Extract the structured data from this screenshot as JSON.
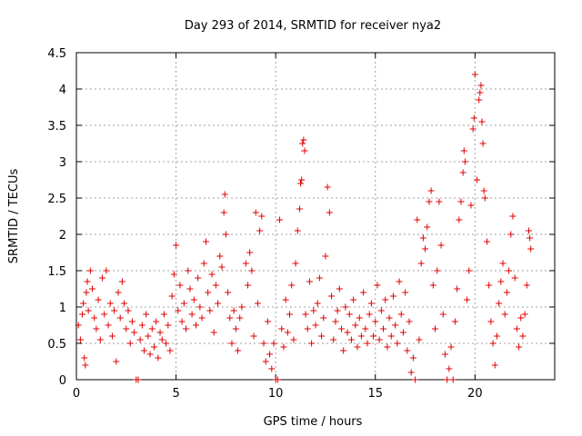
{
  "chart_data": {
    "type": "scatter",
    "title": "Day 293 of 2014, SRMTID for receiver nya2",
    "xlabel": "GPS time / hours",
    "ylabel": "SRMTID / TECUs",
    "xlim": [
      0,
      24
    ],
    "ylim": [
      0,
      4.5
    ],
    "xticks": [
      0,
      5,
      10,
      15,
      20
    ],
    "yticks": [
      0,
      0.5,
      1,
      1.5,
      2,
      2.5,
      3,
      3.5,
      4,
      4.5
    ],
    "xtick_labels": [
      "0",
      "5",
      "10",
      "15",
      "20"
    ],
    "ytick_labels": [
      "0",
      "0.5",
      "1",
      "1.5",
      "2",
      "2.5",
      "3",
      "3.5",
      "4",
      "4.5"
    ],
    "grid": true,
    "marker": "+",
    "color": "#e00000",
    "series": [
      {
        "name": "SRMTID",
        "points": [
          [
            0.1,
            0.75
          ],
          [
            0.2,
            0.55
          ],
          [
            0.3,
            0.9
          ],
          [
            0.35,
            1.05
          ],
          [
            0.4,
            0.3
          ],
          [
            0.45,
            0.2
          ],
          [
            0.5,
            1.2
          ],
          [
            0.55,
            1.35
          ],
          [
            0.6,
            0.95
          ],
          [
            0.7,
            1.5
          ],
          [
            0.8,
            1.25
          ],
          [
            0.9,
            0.85
          ],
          [
            1.0,
            0.7
          ],
          [
            1.1,
            1.1
          ],
          [
            1.2,
            0.55
          ],
          [
            1.3,
            1.4
          ],
          [
            1.4,
            0.9
          ],
          [
            1.5,
            1.5
          ],
          [
            1.6,
            0.75
          ],
          [
            1.7,
            1.05
          ],
          [
            1.8,
            0.6
          ],
          [
            1.9,
            0.95
          ],
          [
            2.0,
            0.25
          ],
          [
            2.1,
            1.2
          ],
          [
            2.2,
            0.85
          ],
          [
            2.3,
            1.35
          ],
          [
            2.4,
            1.05
          ],
          [
            2.5,
            0.7
          ],
          [
            2.6,
            0.95
          ],
          [
            2.7,
            0.5
          ],
          [
            2.8,
            0.8
          ],
          [
            2.9,
            0.65
          ],
          [
            3.0,
            0.0
          ],
          [
            3.1,
            0.0
          ],
          [
            3.2,
            0.55
          ],
          [
            3.3,
            0.75
          ],
          [
            3.4,
            0.4
          ],
          [
            3.5,
            0.9
          ],
          [
            3.6,
            0.6
          ],
          [
            3.7,
            0.35
          ],
          [
            3.8,
            0.7
          ],
          [
            3.9,
            0.45
          ],
          [
            4.0,
            0.8
          ],
          [
            4.1,
            0.3
          ],
          [
            4.2,
            0.65
          ],
          [
            4.3,
            0.55
          ],
          [
            4.4,
            0.9
          ],
          [
            4.5,
            0.5
          ],
          [
            4.6,
            0.75
          ],
          [
            4.7,
            0.4
          ],
          [
            4.8,
            1.15
          ],
          [
            4.9,
            1.45
          ],
          [
            5.0,
            1.85
          ],
          [
            5.1,
            0.95
          ],
          [
            5.2,
            1.3
          ],
          [
            5.3,
            0.8
          ],
          [
            5.4,
            1.05
          ],
          [
            5.5,
            0.7
          ],
          [
            5.6,
            1.5
          ],
          [
            5.7,
            1.25
          ],
          [
            5.8,
            0.9
          ],
          [
            5.9,
            1.1
          ],
          [
            6.0,
            0.75
          ],
          [
            6.1,
            1.4
          ],
          [
            6.2,
            1.0
          ],
          [
            6.3,
            0.85
          ],
          [
            6.4,
            1.6
          ],
          [
            6.5,
            1.9
          ],
          [
            6.6,
            1.2
          ],
          [
            6.7,
            0.95
          ],
          [
            6.8,
            1.45
          ],
          [
            6.9,
            0.65
          ],
          [
            7.0,
            1.3
          ],
          [
            7.1,
            1.05
          ],
          [
            7.2,
            1.7
          ],
          [
            7.3,
            1.55
          ],
          [
            7.4,
            2.3
          ],
          [
            7.45,
            2.55
          ],
          [
            7.5,
            2.0
          ],
          [
            7.6,
            1.2
          ],
          [
            7.7,
            0.85
          ],
          [
            7.8,
            0.5
          ],
          [
            7.9,
            0.95
          ],
          [
            8.0,
            0.7
          ],
          [
            8.1,
            0.4
          ],
          [
            8.2,
            0.85
          ],
          [
            8.3,
            1.0
          ],
          [
            8.5,
            1.6
          ],
          [
            8.6,
            1.3
          ],
          [
            8.7,
            1.75
          ],
          [
            8.8,
            1.5
          ],
          [
            8.9,
            0.6
          ],
          [
            9.0,
            2.3
          ],
          [
            9.1,
            1.05
          ],
          [
            9.2,
            2.05
          ],
          [
            9.3,
            2.25
          ],
          [
            9.4,
            0.5
          ],
          [
            9.5,
            0.25
          ],
          [
            9.6,
            0.8
          ],
          [
            9.7,
            0.35
          ],
          [
            9.8,
            0.15
          ],
          [
            9.9,
            0.5
          ],
          [
            10.0,
            0.0
          ],
          [
            10.1,
            0.0
          ],
          [
            10.2,
            2.2
          ],
          [
            10.3,
            0.7
          ],
          [
            10.4,
            0.45
          ],
          [
            10.5,
            1.1
          ],
          [
            10.6,
            0.65
          ],
          [
            10.7,
            0.9
          ],
          [
            10.8,
            1.3
          ],
          [
            10.9,
            0.55
          ],
          [
            11.0,
            1.6
          ],
          [
            11.1,
            2.05
          ],
          [
            11.2,
            2.35
          ],
          [
            11.25,
            2.7
          ],
          [
            11.3,
            2.75
          ],
          [
            11.35,
            3.25
          ],
          [
            11.4,
            3.3
          ],
          [
            11.45,
            3.15
          ],
          [
            11.5,
            0.9
          ],
          [
            11.6,
            0.7
          ],
          [
            11.7,
            1.35
          ],
          [
            11.8,
            0.5
          ],
          [
            11.9,
            0.95
          ],
          [
            12.0,
            0.75
          ],
          [
            12.1,
            1.05
          ],
          [
            12.2,
            1.4
          ],
          [
            12.3,
            0.6
          ],
          [
            12.4,
            0.85
          ],
          [
            12.5,
            1.7
          ],
          [
            12.6,
            2.65
          ],
          [
            12.7,
            2.3
          ],
          [
            12.8,
            1.15
          ],
          [
            12.9,
            0.55
          ],
          [
            13.0,
            0.8
          ],
          [
            13.1,
            0.95
          ],
          [
            13.2,
            1.25
          ],
          [
            13.3,
            0.7
          ],
          [
            13.4,
            0.4
          ],
          [
            13.5,
            1.0
          ],
          [
            13.6,
            0.65
          ],
          [
            13.7,
            0.9
          ],
          [
            13.8,
            0.55
          ],
          [
            13.9,
            1.1
          ],
          [
            14.0,
            0.75
          ],
          [
            14.1,
            0.45
          ],
          [
            14.2,
            0.85
          ],
          [
            14.3,
            0.6
          ],
          [
            14.4,
            1.2
          ],
          [
            14.5,
            0.7
          ],
          [
            14.6,
            0.5
          ],
          [
            14.7,
            0.9
          ],
          [
            14.8,
            1.05
          ],
          [
            14.9,
            0.6
          ],
          [
            15.0,
            0.8
          ],
          [
            15.1,
            1.3
          ],
          [
            15.2,
            0.55
          ],
          [
            15.3,
            0.95
          ],
          [
            15.4,
            0.7
          ],
          [
            15.5,
            1.1
          ],
          [
            15.6,
            0.45
          ],
          [
            15.7,
            0.85
          ],
          [
            15.8,
            0.6
          ],
          [
            15.9,
            1.15
          ],
          [
            16.0,
            0.75
          ],
          [
            16.1,
            0.5
          ],
          [
            16.2,
            1.35
          ],
          [
            16.3,
            0.9
          ],
          [
            16.4,
            0.65
          ],
          [
            16.5,
            1.2
          ],
          [
            16.6,
            0.4
          ],
          [
            16.7,
            0.8
          ],
          [
            16.8,
            0.1
          ],
          [
            16.9,
            0.3
          ],
          [
            17.0,
            0.0
          ],
          [
            17.1,
            2.2
          ],
          [
            17.2,
            0.55
          ],
          [
            17.3,
            1.6
          ],
          [
            17.4,
            1.95
          ],
          [
            17.5,
            1.8
          ],
          [
            17.6,
            2.1
          ],
          [
            17.7,
            2.45
          ],
          [
            17.8,
            2.6
          ],
          [
            17.9,
            1.3
          ],
          [
            18.0,
            0.7
          ],
          [
            18.1,
            1.5
          ],
          [
            18.2,
            2.45
          ],
          [
            18.3,
            1.85
          ],
          [
            18.4,
            0.9
          ],
          [
            18.5,
            0.35
          ],
          [
            18.6,
            0.0
          ],
          [
            18.7,
            0.15
          ],
          [
            18.8,
            0.45
          ],
          [
            18.9,
            0.0
          ],
          [
            19.0,
            0.8
          ],
          [
            19.1,
            1.25
          ],
          [
            19.2,
            2.2
          ],
          [
            19.3,
            2.45
          ],
          [
            19.4,
            2.85
          ],
          [
            19.45,
            3.15
          ],
          [
            19.5,
            3.0
          ],
          [
            19.6,
            1.1
          ],
          [
            19.7,
            1.5
          ],
          [
            19.8,
            2.4
          ],
          [
            19.9,
            3.45
          ],
          [
            19.95,
            3.6
          ],
          [
            20.0,
            4.2
          ],
          [
            20.1,
            2.75
          ],
          [
            20.2,
            3.85
          ],
          [
            20.25,
            3.95
          ],
          [
            20.3,
            4.05
          ],
          [
            20.35,
            3.55
          ],
          [
            20.4,
            3.25
          ],
          [
            20.45,
            2.6
          ],
          [
            20.5,
            2.5
          ],
          [
            20.6,
            1.9
          ],
          [
            20.7,
            1.3
          ],
          [
            20.8,
            0.8
          ],
          [
            20.9,
            0.5
          ],
          [
            21.0,
            0.2
          ],
          [
            21.1,
            0.6
          ],
          [
            21.2,
            1.05
          ],
          [
            21.3,
            1.35
          ],
          [
            21.4,
            1.6
          ],
          [
            21.5,
            0.9
          ],
          [
            21.6,
            1.2
          ],
          [
            21.7,
            1.5
          ],
          [
            21.8,
            2.0
          ],
          [
            21.9,
            2.25
          ],
          [
            22.0,
            1.4
          ],
          [
            22.1,
            0.7
          ],
          [
            22.2,
            0.45
          ],
          [
            22.3,
            0.85
          ],
          [
            22.4,
            0.6
          ],
          [
            22.5,
            0.9
          ],
          [
            22.6,
            1.3
          ],
          [
            22.7,
            2.05
          ],
          [
            22.75,
            1.95
          ],
          [
            22.8,
            1.8
          ]
        ]
      }
    ]
  }
}
